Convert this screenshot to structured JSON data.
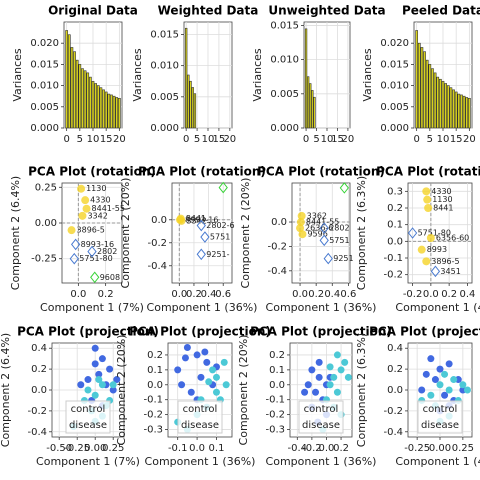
{
  "chart_data": [
    {
      "type": "bar",
      "title": "Original Data",
      "ylabel": "Variances",
      "color": "#d8d21e",
      "edge": "#333",
      "grid": true,
      "x": [
        0,
        1,
        2,
        3,
        4,
        5,
        6,
        7,
        8,
        9,
        10,
        11,
        12,
        13,
        14,
        15,
        16,
        17,
        18,
        19,
        20
      ],
      "values": [
        0.023,
        0.022,
        0.019,
        0.018,
        0.016,
        0.015,
        0.014,
        0.0135,
        0.013,
        0.012,
        0.011,
        0.0105,
        0.01,
        0.0095,
        0.009,
        0.0085,
        0.008,
        0.0078,
        0.0075,
        0.0072,
        0.007
      ],
      "xlim": [
        -1,
        21
      ],
      "xticks": [
        0,
        5,
        10,
        15,
        20
      ],
      "ylim": [
        0,
        0.025
      ],
      "yticks": [
        {
          "value": 0,
          "label": "0.000"
        },
        0.005,
        {
          "value": 0.01,
          "label": "0.010"
        },
        0.015,
        {
          "value": 0.02,
          "label": "0.020"
        }
      ]
    },
    {
      "type": "bar",
      "title": "Weighted Data",
      "ylabel": "Variances",
      "color": "#d8d21e",
      "edge": "#333",
      "grid": true,
      "x": [
        0,
        1,
        2,
        3,
        4
      ],
      "values": [
        0.016,
        0.0085,
        0.0075,
        0.0065,
        0.0055
      ],
      "xlim": [
        -1,
        21
      ],
      "xticks": [
        0,
        5,
        10,
        15,
        20
      ],
      "ylim": [
        0,
        0.017
      ],
      "yticks": [
        {
          "value": 0,
          "label": "0.000"
        },
        0.005,
        {
          "value": 0.01,
          "label": "0.010"
        },
        0.015
      ]
    },
    {
      "type": "bar",
      "title": "Unweighted Data",
      "ylabel": "Variances",
      "color": "#d8d21e",
      "edge": "#333",
      "grid": true,
      "x": [
        0,
        1,
        2,
        3,
        4
      ],
      "values": [
        0.0145,
        0.0075,
        0.0065,
        0.0055,
        0.0045
      ],
      "xlim": [
        -1,
        21
      ],
      "xticks": [
        0,
        5,
        10,
        15,
        20
      ],
      "ylim": [
        0,
        0.0155
      ],
      "yticks": [
        {
          "value": 0,
          "label": "0.000"
        },
        0.005,
        {
          "value": 0.01,
          "label": "0.010"
        },
        0.015
      ]
    },
    {
      "type": "bar",
      "title": "Peeled Data",
      "ylabel": "Variances",
      "color": "#d8d21e",
      "edge": "#333",
      "grid": true,
      "x": [
        0,
        1,
        2,
        3,
        4,
        5,
        6,
        7,
        8,
        9,
        10,
        11,
        12,
        13,
        14,
        15,
        16,
        17,
        18,
        19,
        20
      ],
      "values": [
        0.023,
        0.02,
        0.019,
        0.018,
        0.016,
        0.015,
        0.014,
        0.013,
        0.012,
        0.0115,
        0.011,
        0.0105,
        0.01,
        0.0095,
        0.009,
        0.0085,
        0.008,
        0.0078,
        0.0075,
        0.0072,
        0.007
      ],
      "xlim": [
        -1,
        21
      ],
      "xticks": [
        0,
        5,
        10,
        15,
        20
      ],
      "ylim": [
        0,
        0.025
      ],
      "yticks": [
        {
          "value": 0,
          "label": "0.000"
        },
        0.005,
        {
          "value": 0.01,
          "label": "0.010"
        },
        0.015,
        {
          "value": 0.02,
          "label": "0.020"
        }
      ]
    },
    {
      "type": "scatter",
      "title": "PCA Plot (rotation)",
      "xlabel": "Component 1 (7%)",
      "ylabel": "Component 2 (6.4%)",
      "grid": true,
      "x": [
        0.02,
        0.05,
        0.06,
        0.03,
        -0.05,
        -0.02,
        -0.03,
        0.12,
        0.1
      ],
      "y": [
        0.24,
        0.16,
        0.1,
        0.05,
        -0.05,
        -0.15,
        -0.25,
        -0.38,
        -0.2
      ],
      "labels": [
        "1130",
        "4330",
        "8441-55",
        "3342",
        "3896-5",
        "8993-16",
        "5751-80",
        "9608",
        "2802"
      ],
      "colors": [
        "#f5d327",
        "#f5d327",
        "#f5d327",
        "#f5d327",
        "#f5d327",
        "#4a7bd0",
        "#4a7bd0",
        "#39d339",
        "#4a7bd0"
      ],
      "xlim": [
        -0.12,
        0.32
      ],
      "xticks": [
        {
          "value": 0,
          "label": "0.0"
        },
        0.2
      ],
      "ylim": [
        -0.42,
        0.28
      ],
      "yticks": [
        -0.25,
        {
          "value": 0,
          "label": "0.00"
        },
        0.25
      ]
    },
    {
      "type": "scatter",
      "title": "PCA Plot (rotation)",
      "xlabel": "Component 1 (36%)",
      "ylabel": "Component 2 (20%)",
      "grid": true,
      "x": [
        0.01,
        0.02,
        0.03,
        0.3,
        0.35,
        0.3,
        0.6
      ],
      "y": [
        0.0,
        0.01,
        -0.01,
        -0.05,
        -0.15,
        -0.3,
        0.28
      ],
      "labels": [
        "8993-16",
        "8441",
        "3342",
        "2802-6",
        "5751",
        "9251-",
        null
      ],
      "colors": [
        "#f5d327",
        "#f5d327",
        "#f5d327",
        "#4a7bd0",
        "#4a7bd0",
        "#4a7bd0",
        "#39d339"
      ],
      "xlim": [
        -0.1,
        0.72
      ],
      "xticks": [
        {
          "value": 0,
          "label": "0.0"
        },
        0.2,
        0.4,
        0.6
      ],
      "ylim": [
        -0.55,
        0.32
      ],
      "yticks": [
        -0.4,
        -0.2,
        {
          "value": 0,
          "label": "0.0"
        }
      ]
    },
    {
      "type": "scatter",
      "title": "PCA Plot (rotation)",
      "xlabel": "Component 1 (36%)",
      "ylabel": "Component 2 (20%)",
      "grid": true,
      "x": [
        0.02,
        0.01,
        0.0,
        0.03,
        0.3,
        0.3,
        0.35,
        0.55
      ],
      "y": [
        0.05,
        0.0,
        -0.05,
        -0.1,
        -0.05,
        -0.15,
        -0.3,
        0.28
      ],
      "labels": [
        "3362",
        "8441-55",
        "2636-6",
        "9596",
        "2802",
        "5751",
        "9251",
        null
      ],
      "colors": [
        "#f5d327",
        "#f5d327",
        "#f5d327",
        "#f5d327",
        "#4a7bd0",
        "#4a7bd0",
        "#4a7bd0",
        "#39d339"
      ],
      "xlim": [
        -0.1,
        0.62
      ],
      "xticks": [
        {
          "value": 0,
          "label": "0.0"
        },
        0.2,
        0.4,
        0.6
      ],
      "ylim": [
        -0.5,
        0.32
      ],
      "yticks": [
        -0.4,
        -0.2,
        {
          "value": 0,
          "label": "0.0"
        }
      ]
    },
    {
      "type": "scatter",
      "title": "PCA Plot (rotation)",
      "xlabel": "Component 1 (4",
      "ylabel": "Component 2 (6.3%)",
      "grid": true,
      "x": [
        -0.05,
        -0.04,
        -0.03,
        -0.2,
        0.0,
        -0.1,
        -0.05,
        0.05
      ],
      "y": [
        0.3,
        0.25,
        0.2,
        0.05,
        0.02,
        -0.05,
        -0.12,
        -0.18
      ],
      "labels": [
        "4330",
        "1130",
        "8441",
        "5751-80",
        "6356-60",
        "8993",
        "3896-5",
        "3451"
      ],
      "colors": [
        "#f5d327",
        "#f5d327",
        "#f5d327",
        "#4a7bd0",
        "#f5d327",
        "#f5d327",
        "#f5d327",
        "#4a7bd0"
      ],
      "xlim": [
        -0.25,
        0.45
      ],
      "xticks": [
        -0.2,
        {
          "value": 0,
          "label": "0.0"
        },
        0.2,
        0.4
      ],
      "ylim": [
        -0.25,
        0.35
      ],
      "yticks": [
        -0.2,
        -0.1,
        {
          "value": 0,
          "label": "0.0"
        },
        0.1,
        0.2,
        0.3
      ]
    },
    {
      "type": "projection",
      "title": "PCA Plot (projection)",
      "xlabel": "Component 1 (7%)",
      "ylabel": "Component 2 (6.4%)",
      "grid": true,
      "legend": "lower center",
      "series": [
        {
          "name": "control",
          "color": "#4169e1",
          "x": [
            0.0,
            0.1,
            0.2,
            -0.1,
            0.05,
            0.15,
            0.25,
            -0.05,
            0.1,
            0.3,
            -0.2,
            0.0
          ],
          "y": [
            0.4,
            0.3,
            0.2,
            0.1,
            0.15,
            0.05,
            0.0,
            -0.1,
            -0.15,
            0.1,
            0.05,
            0.25
          ]
        },
        {
          "name": "disease",
          "color": "#4cc9d6",
          "x": [
            -0.1,
            0.0,
            0.1,
            0.2,
            -0.05,
            0.05,
            0.15,
            -0.3,
            0.25,
            0.0,
            0.1,
            -0.15
          ],
          "y": [
            0.0,
            -0.05,
            0.05,
            -0.1,
            -0.2,
            0.1,
            -0.15,
            -0.35,
            0.05,
            -0.3,
            -0.25,
            -0.1
          ]
        }
      ],
      "xlim": [
        -0.6,
        0.4
      ],
      "xticks": [
        {
          "value": -0.5,
          "label": "-0.50"
        },
        -0.25,
        {
          "value": 0,
          "label": "0.00"
        },
        0.25
      ],
      "ylim": [
        -0.45,
        0.45
      ],
      "yticks": [
        -0.4,
        -0.2,
        {
          "value": 0,
          "label": "0.0"
        },
        0.2,
        0.4
      ]
    },
    {
      "type": "projection",
      "title": "PCA Plot (projection)",
      "xlabel": "Component 1 (36%)",
      "ylabel": "Component 2 (20%)",
      "grid": true,
      "legend": "lower center",
      "series": [
        {
          "name": "control",
          "color": "#4169e1",
          "x": [
            -0.05,
            0.0,
            0.05,
            -0.1,
            0.02,
            0.08,
            -0.03,
            0.1,
            -0.08,
            0.0,
            0.04,
            -0.06
          ],
          "y": [
            0.25,
            0.2,
            0.15,
            0.1,
            0.05,
            0.0,
            -0.05,
            0.12,
            0.0,
            -0.1,
            0.22,
            0.18
          ]
        },
        {
          "name": "disease",
          "color": "#4cc9d6",
          "x": [
            0.1,
            0.15,
            0.12,
            0.05,
            0.0,
            -0.05,
            0.08,
            0.14,
            -0.1,
            0.1,
            0.02,
            0.06
          ],
          "y": [
            0.05,
            0.0,
            -0.1,
            -0.15,
            -0.2,
            -0.3,
            0.1,
            0.15,
            -0.25,
            -0.05,
            -0.1,
            0.02
          ]
        }
      ],
      "xlim": [
        -0.15,
        0.18
      ],
      "xticks": [
        -0.1,
        {
          "value": 0,
          "label": "0.0"
        },
        0.1
      ],
      "ylim": [
        -0.35,
        0.28
      ],
      "yticks": [
        -0.3,
        -0.2,
        -0.1,
        {
          "value": 0,
          "label": "0.0"
        },
        0.1,
        0.2
      ]
    },
    {
      "type": "projection",
      "title": "PCA Plot (projection)",
      "xlabel": "Component 1 (36%)",
      "ylabel": "Component 2 (20%)",
      "grid": true,
      "legend": "lower center",
      "series": [
        {
          "name": "control",
          "color": "#4169e1",
          "x": [
            -0.2,
            -0.1,
            -0.15,
            0.0,
            -0.05,
            -0.25,
            -0.1,
            0.05,
            -0.2,
            -0.3,
            0.0,
            -0.12
          ],
          "y": [
            0.1,
            0.05,
            -0.05,
            0.0,
            -0.1,
            0.0,
            0.15,
            0.05,
            -0.15,
            -0.05,
            -0.2,
            -0.25
          ]
        },
        {
          "name": "disease",
          "color": "#4cc9d6",
          "x": [
            0.1,
            0.2,
            0.15,
            0.05,
            0.25,
            0.0,
            0.1,
            0.2,
            -0.05,
            0.15,
            0.3,
            0.05
          ],
          "y": [
            0.05,
            0.1,
            -0.05,
            0.0,
            0.15,
            -0.1,
            -0.15,
            -0.2,
            -0.3,
            0.2,
            0.05,
            0.12
          ]
        }
      ],
      "xlim": [
        -0.5,
        0.35
      ],
      "xticks": [
        -0.4,
        -0.2,
        {
          "value": 0,
          "label": "0.0"
        },
        0.2
      ],
      "ylim": [
        -0.35,
        0.28
      ],
      "yticks": [
        -0.3,
        -0.2,
        -0.1,
        {
          "value": 0,
          "label": "0.0"
        },
        0.1,
        0.2
      ]
    },
    {
      "type": "projection",
      "title": "PCA Plot (projection)",
      "xlabel": "Component 1 (4",
      "ylabel": "Component 2 (6.3%)",
      "grid": true,
      "legend": "lower center",
      "series": [
        {
          "name": "control",
          "color": "#4169e1",
          "x": [
            -0.1,
            0.0,
            0.1,
            0.2,
            -0.2,
            0.05,
            0.15,
            -0.05,
            0.25,
            0.0,
            0.1,
            -0.15
          ],
          "y": [
            0.3,
            0.2,
            0.25,
            0.1,
            0.0,
            -0.05,
            -0.1,
            0.1,
            0.0,
            -0.2,
            -0.15,
            0.15
          ]
        },
        {
          "name": "disease",
          "color": "#4cc9d6",
          "x": [
            0.0,
            0.1,
            -0.1,
            0.2,
            0.05,
            -0.05,
            0.15,
            0.25,
            -0.2,
            0.1,
            0.0,
            0.3
          ],
          "y": [
            0.05,
            0.0,
            -0.05,
            -0.1,
            0.15,
            -0.15,
            0.1,
            0.05,
            -0.1,
            -0.25,
            -0.3,
            0.0
          ]
        }
      ],
      "xlim": [
        -0.35,
        0.35
      ],
      "xticks": [
        -0.25,
        {
          "value": 0,
          "label": "0.00"
        },
        0.25
      ],
      "ylim": [
        -0.45,
        0.45
      ],
      "yticks": [
        -0.4,
        -0.2,
        {
          "value": 0,
          "label": "0.0"
        },
        0.2,
        0.4
      ]
    }
  ]
}
